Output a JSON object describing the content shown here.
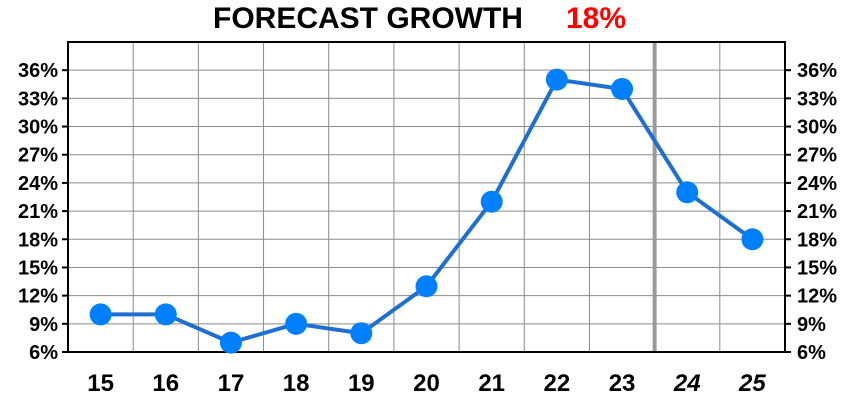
{
  "chart_data": {
    "type": "line",
    "title": "FORECAST GROWTH",
    "title_highlight": "18%",
    "title_highlight_color": "#ff0000",
    "categories": [
      "15",
      "16",
      "17",
      "18",
      "19",
      "20",
      "21",
      "22",
      "23",
      "24",
      "25"
    ],
    "forecast_categories": [
      "24",
      "25"
    ],
    "series": [
      {
        "values": [
          10,
          10,
          7,
          9,
          8,
          13,
          22,
          35,
          34,
          23,
          18
        ],
        "color": "#0080ff",
        "line_color": "#1e6fd0"
      }
    ],
    "y_ticks": [
      "6%",
      "9%",
      "12%",
      "15%",
      "18%",
      "21%",
      "24%",
      "27%",
      "30%",
      "33%",
      "36%"
    ],
    "ylim": [
      6,
      39
    ],
    "y_tick_step": 3,
    "grid": true,
    "y_axis_both_sides": true,
    "xlabel": "",
    "ylabel": ""
  }
}
